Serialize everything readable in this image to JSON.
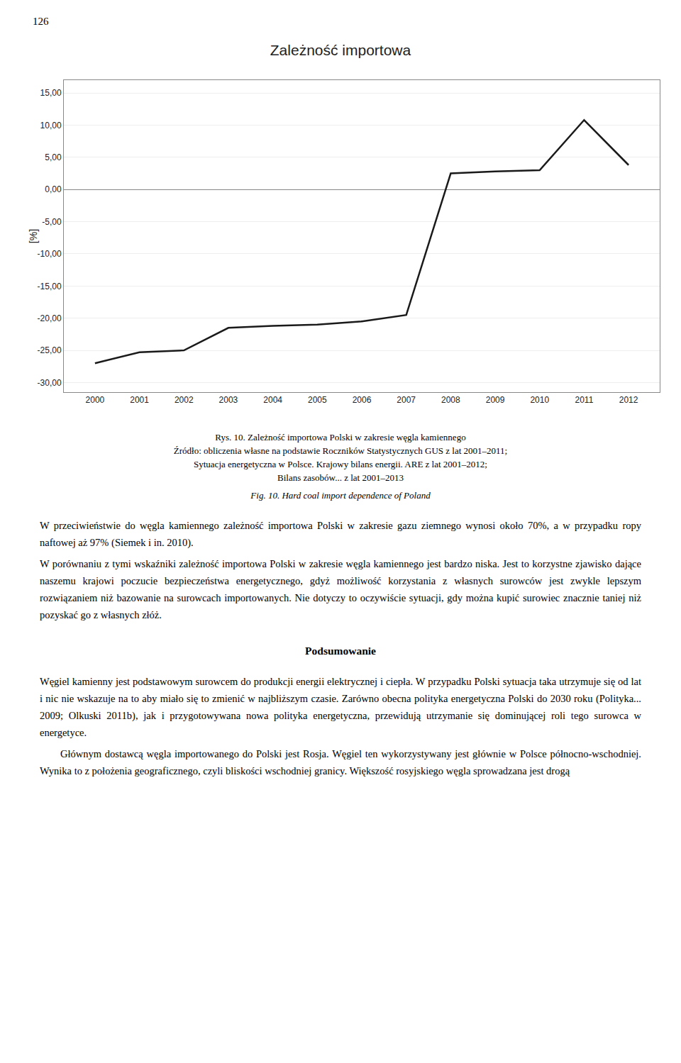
{
  "chart_data": {
    "type": "line",
    "title": "Zależność importowa",
    "ylabel": "[%]",
    "x": [
      2000,
      2001,
      2002,
      2003,
      2004,
      2005,
      2006,
      2007,
      2008,
      2009,
      2010,
      2011,
      2012
    ],
    "values": [
      -27.0,
      -25.3,
      -25.0,
      -21.5,
      -21.2,
      -21.0,
      -20.5,
      -19.5,
      2.5,
      2.8,
      3.0,
      10.8,
      3.8
    ],
    "color": "#1a1a1a",
    "xlim": [
      1999.3,
      2012.7
    ],
    "xticks": [
      2000,
      2001,
      2002,
      2003,
      2004,
      2005,
      2006,
      2007,
      2008,
      2009,
      2010,
      2011,
      2012
    ],
    "ylim": [
      -31.5,
      17.0
    ],
    "yticks": [
      {
        "value": 15.0,
        "label": "15,00"
      },
      {
        "value": 10.0,
        "label": "10,00"
      },
      {
        "value": 5.0,
        "label": "5,00"
      },
      {
        "value": 0.0,
        "label": "0,00"
      },
      {
        "value": -5.0,
        "label": "-5,00"
      },
      {
        "value": -10.0,
        "label": "-10,00"
      },
      {
        "value": -15.0,
        "label": "-15,00"
      },
      {
        "value": -20.0,
        "label": "-20,00"
      },
      {
        "value": -25.0,
        "label": "-25,00"
      },
      {
        "value": -30.0,
        "label": "-30,00"
      }
    ],
    "grid": true,
    "annotations": [
      "126",
      "Rys. 10. Zależność importowa Polski w zakresie węgla kamiennego",
      "Źródło: obliczenia własne na podstawie Roczników Statystycznych GUS z lat 2001–2011;",
      "Sytuacja energetyczna w Polsce. Krajowy bilans energii. ARE z lat 2001–2012;",
      "Bilans zasobów... z lat 2001–2013",
      "Fig. 10. Hard coal import dependence of Poland",
      "W przeciwieństwie do węgla kamiennego zależność importowa Polski w zakresie gazu ziemnego wynosi około 70%, a w przypadku ropy naftowej aż 97% (Siemek i in. 2010).",
      "W porównaniu z tymi wskaźniki zależność importowa Polski w zakresie węgla kamiennego jest bardzo niska. Jest to korzystne zjawisko dające naszemu krajowi poczucie bezpieczeństwa energetycznego, gdyż możliwość korzystania z własnych surowców jest zwykle lepszym rozwiązaniem niż bazowanie na surowcach importowanych. Nie dotyczy to oczywiście sytuacji, gdy można kupić surowiec znacznie taniej niż pozyskać go z własnych złóż.",
      "Podsumowanie",
      "Węgiel kamienny jest podstawowym surowcem do produkcji energii elektrycznej i ciepła. W przypadku Polski sytuacja taka utrzymuje się od lat i nic nie wskazuje na to aby miało się to zmienić w najbliższym czasie. Zarówno obecna polityka energetyczna Polski do 2030 roku (Polityka... 2009; Olkuski 2011b), jak i przygotowywana nowa polityka energetyczna, przewidują utrzymanie się dominującej roli tego surowca w energetyce.",
      "Głównym dostawcą węgla importowanego do Polski jest Rosja. Węgiel ten wykorzystywany jest głównie w Polsce północno-wschodniej. Wynika to z położenia geograficznego, czyli bliskości wschodniej granicy. Większość rosyjskiego węgla sprowadzana jest drogą"
    ]
  }
}
